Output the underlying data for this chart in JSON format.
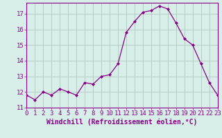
{
  "x": [
    0,
    1,
    2,
    3,
    4,
    5,
    6,
    7,
    8,
    9,
    10,
    11,
    12,
    13,
    14,
    15,
    16,
    17,
    18,
    19,
    20,
    21,
    22,
    23
  ],
  "y": [
    11.8,
    11.5,
    12.0,
    11.8,
    12.2,
    12.0,
    11.8,
    12.6,
    12.5,
    13.0,
    13.1,
    13.8,
    15.8,
    16.5,
    17.1,
    17.2,
    17.5,
    17.3,
    16.4,
    15.4,
    15.0,
    13.8,
    12.6,
    11.8
  ],
  "line_color": "#880088",
  "marker": "D",
  "marker_size": 2.0,
  "background_color": "#d8eee8",
  "grid_color": "#b0c8c0",
  "xlabel": "Windchill (Refroidissement éolien,°C)",
  "ylabel": "",
  "title": "",
  "xlim": [
    0,
    23
  ],
  "ylim": [
    11,
    17.7
  ],
  "yticks": [
    11,
    12,
    13,
    14,
    15,
    16,
    17
  ],
  "xticks": [
    0,
    1,
    2,
    3,
    4,
    5,
    6,
    7,
    8,
    9,
    10,
    11,
    12,
    13,
    14,
    15,
    16,
    17,
    18,
    19,
    20,
    21,
    22,
    23
  ],
  "xlabel_fontsize": 7,
  "tick_fontsize": 6.5,
  "label_color": "#880088",
  "spine_color": "#880088",
  "linewidth": 0.9
}
